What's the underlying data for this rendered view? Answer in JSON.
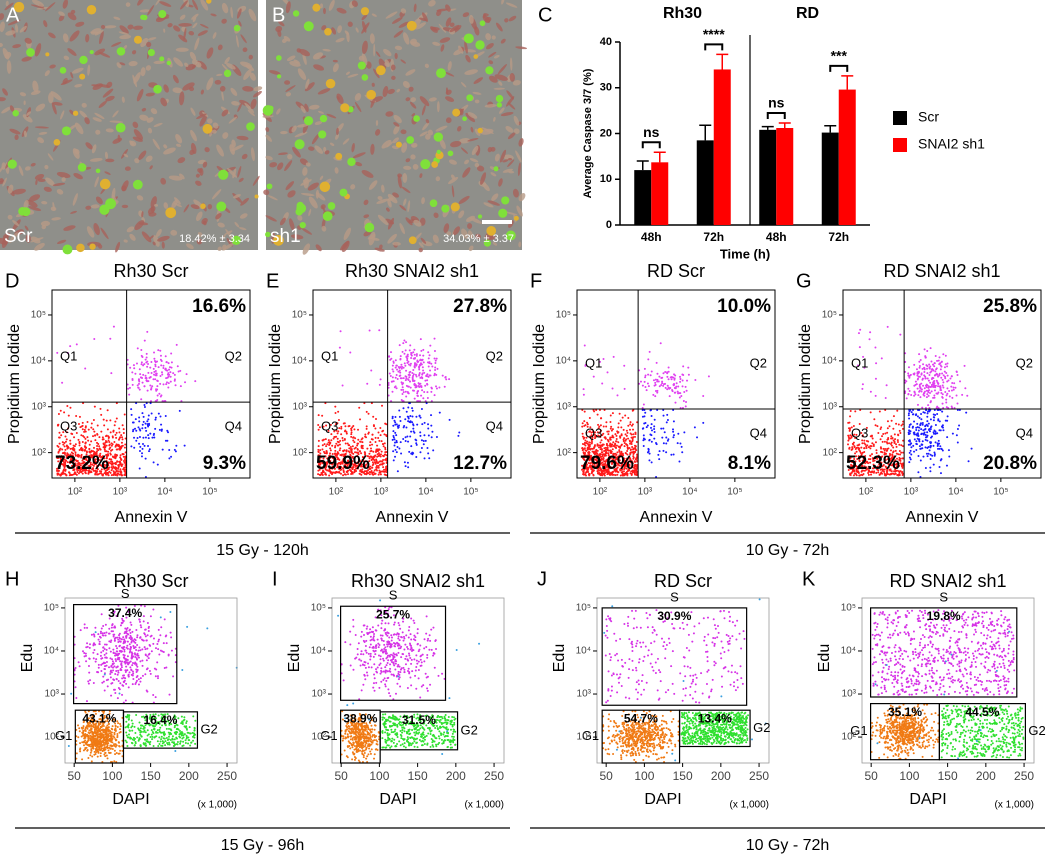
{
  "microscopy": [
    {
      "letter": "A",
      "label": "Scr",
      "stat": "18.42% ± 3.34"
    },
    {
      "letter": "B",
      "label": "sh1",
      "stat": "34.03% ± 3.37"
    }
  ],
  "chart_data": {
    "type": "bar",
    "letter": "C",
    "groups": [
      "Rh30",
      "RD"
    ],
    "categories": [
      "48h",
      "72h",
      "48h",
      "72h"
    ],
    "series": [
      {
        "name": "Scr",
        "color": "#000000",
        "values": [
          12,
          18.5,
          20.8,
          20.2
        ],
        "errors": [
          2,
          3.3,
          0.7,
          1.5
        ]
      },
      {
        "name": "SNAI2 sh1",
        "color": "#ff0000",
        "values": [
          13.7,
          34,
          21.2,
          29.6
        ],
        "errors": [
          2.2,
          3.3,
          1.1,
          3
        ]
      }
    ],
    "significance": [
      "ns",
      "****",
      "ns",
      "***"
    ],
    "xlabel": "Time (h)",
    "ylabel": "Average Caspase 3/7 (%)",
    "ylim": [
      0,
      40
    ],
    "yticks": [
      0,
      10,
      20,
      30,
      40
    ]
  },
  "apoptosis": {
    "xlabel": "Annexin V",
    "ylabel": "Propidium Iodide",
    "xlim": [
      31,
      780000
    ],
    "ylim": [
      28,
      350000
    ],
    "ticks": [
      {
        "value": 100,
        "label": "10²"
      },
      {
        "value": 1000,
        "label": "10³"
      },
      {
        "value": 10000,
        "label": "10⁴"
      },
      {
        "value": 100000,
        "label": "10⁵"
      }
    ],
    "quadrants": [
      "Q1",
      "Q2",
      "Q3",
      "Q4"
    ],
    "panels": [
      {
        "letter": "D",
        "title": "Rh30 Scr",
        "q2": "16.6%",
        "q3": "73.2%",
        "q4": "9.3%"
      },
      {
        "letter": "E",
        "title": "Rh30 SNAI2 sh1",
        "q2": "27.8%",
        "q3": "59.9%",
        "q4": "12.7%"
      },
      {
        "letter": "F",
        "title": "RD Scr",
        "q2": "10.0%",
        "q3": "79.6%",
        "q4": "8.1%"
      },
      {
        "letter": "G",
        "title": "RD SNAI2 sh1",
        "q2": "25.8%",
        "q3": "52.3%",
        "q4": "20.8%"
      }
    ],
    "conditions": [
      "15 Gy - 120h",
      "10 Gy - 72h"
    ]
  },
  "cell_cycle": {
    "xlabel": "DAPI",
    "ylabel": "Edu",
    "xunit": "(x 1,000)",
    "xlim": [
      38,
      263
    ],
    "ylim": [
      25,
      170000
    ],
    "xticks": [
      50,
      100,
      150,
      200,
      250
    ],
    "yticks": [
      {
        "value": 100,
        "label": "10²"
      },
      {
        "value": 1000,
        "label": "10³"
      },
      {
        "value": 10000,
        "label": "10⁴"
      },
      {
        "value": 100000,
        "label": "10⁵"
      }
    ],
    "gates": [
      "S",
      "G1",
      "G2"
    ],
    "panels": [
      {
        "letter": "H",
        "title": "Rh30 Scr",
        "s": "37.4%",
        "g1": "43.1%",
        "g2": "16.4%"
      },
      {
        "letter": "I",
        "title": "Rh30 SNAI2 sh1",
        "s": "25.7%",
        "g1": "38.9%",
        "g2": "31.5%"
      },
      {
        "letter": "J",
        "title": "RD Scr",
        "s": "30.9%",
        "g1": "54.7%",
        "g2": "13.4%"
      },
      {
        "letter": "K",
        "title": "RD SNAI2 sh1",
        "s": "19.8%",
        "g1": "35.1%",
        "g2": "44.5%"
      }
    ],
    "conditions": [
      "15 Gy - 96h",
      "10 Gy - 72h"
    ]
  }
}
